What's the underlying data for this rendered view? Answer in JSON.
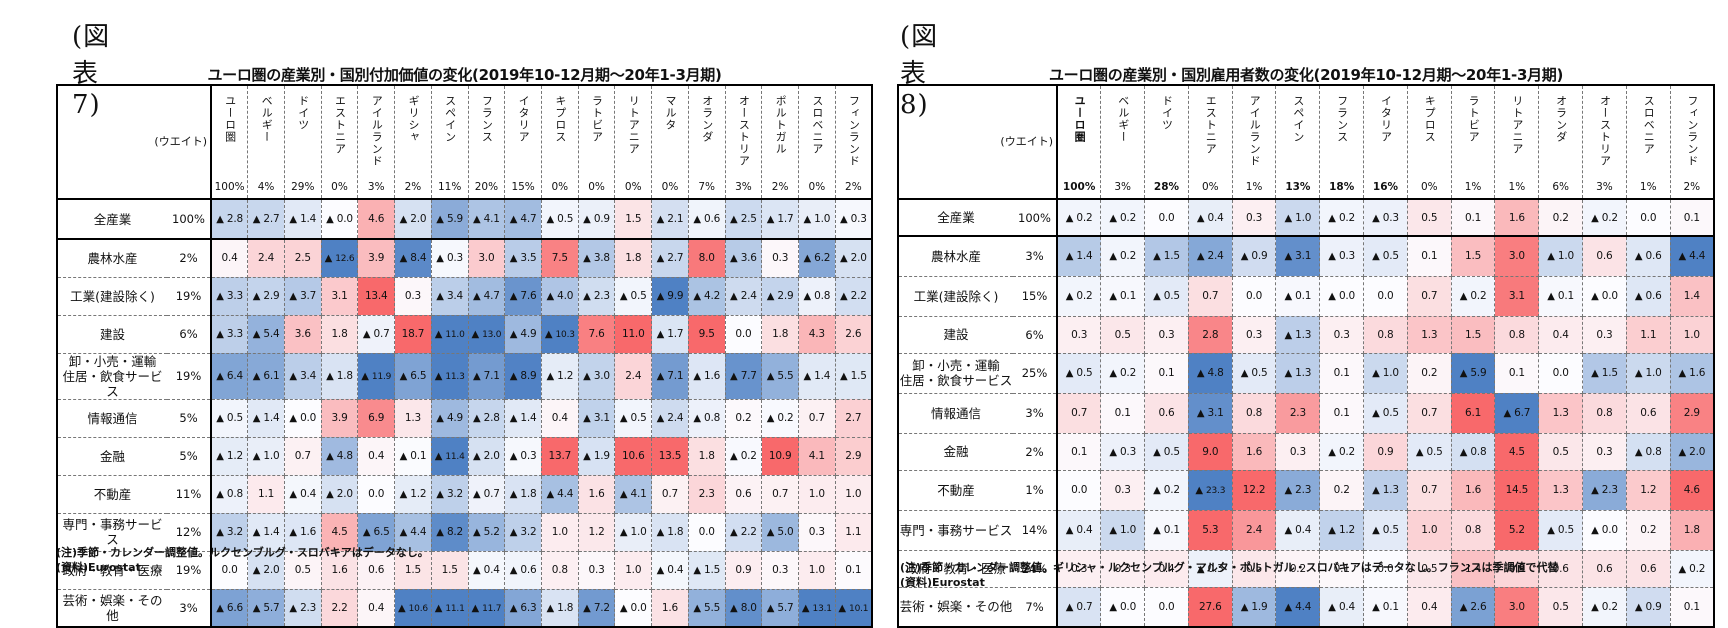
{
  "figures": [
    {
      "fig_label": "(図表 7)",
      "title": "ユーロ圏の産業別・国別付加価値の変化(2019年10-12月期～20年1-3月期)",
      "weight_label": "(ウエイト)",
      "columns": [
        "ユーロ圏",
        "ベルギー",
        "ドイツ",
        "エストニア",
        "アイルランド",
        "ギリシャ",
        "スペイン",
        "フランス",
        "イタリア",
        "キプロス",
        "ラトビア",
        "リトアニア",
        "マルタ",
        "オランダ",
        "オーストリア",
        "ポルトガル",
        "スロベニア",
        "フィンランド"
      ],
      "column_weights": [
        "100%",
        "4%",
        "29%",
        "0%",
        "3%",
        "2%",
        "11%",
        "20%",
        "15%",
        "0%",
        "0%",
        "0%",
        "0%",
        "7%",
        "3%",
        "2%",
        "0%",
        "2%"
      ],
      "rows": [
        {
          "label": "全産業",
          "weight": "100%",
          "values": [
            -2.8,
            -2.7,
            -1.4,
            -0.0,
            4.6,
            -2.0,
            -5.9,
            -4.1,
            -4.7,
            -0.5,
            -0.9,
            1.5,
            -2.1,
            -0.6,
            -2.5,
            -1.7,
            -1.0,
            -0.3
          ]
        },
        {
          "label": "農林水産",
          "weight": "2%",
          "values": [
            0.4,
            2.4,
            2.5,
            -12.6,
            3.9,
            -8.4,
            -0.3,
            3.0,
            -3.5,
            7.5,
            -3.8,
            1.8,
            -2.7,
            8.0,
            -3.6,
            0.3,
            -6.2,
            -2.0
          ]
        },
        {
          "label": "工業(建設除く)",
          "weight": "19%",
          "values": [
            -3.3,
            -2.9,
            -3.7,
            3.1,
            13.4,
            0.3,
            -3.4,
            -4.7,
            -7.6,
            -4.0,
            -2.3,
            -0.5,
            -9.9,
            -4.2,
            -2.4,
            -2.9,
            -0.8,
            -2.2
          ]
        },
        {
          "label": "建設",
          "weight": "6%",
          "values": [
            -3.3,
            -5.4,
            3.6,
            1.8,
            -0.7,
            18.7,
            -11.0,
            -13.0,
            -4.9,
            -10.3,
            7.6,
            11.0,
            -1.7,
            9.5,
            0.0,
            1.8,
            4.3,
            2.6
          ]
        },
        {
          "label": "卸・小売・運輸\n住居・飲食サービス",
          "weight": "19%",
          "values": [
            -6.4,
            -6.1,
            -3.4,
            -1.8,
            -11.9,
            -6.5,
            -11.3,
            -7.1,
            -8.9,
            -1.2,
            -3.0,
            2.4,
            -7.1,
            -1.6,
            -7.7,
            -5.5,
            -1.4,
            -1.5
          ]
        },
        {
          "label": "情報通信",
          "weight": "5%",
          "values": [
            -0.5,
            -1.4,
            -0.0,
            3.9,
            6.9,
            1.3,
            -4.9,
            -2.8,
            -1.4,
            0.4,
            -3.1,
            -0.5,
            -2.4,
            -0.8,
            0.2,
            -0.2,
            0.7,
            2.7
          ]
        },
        {
          "label": "金融",
          "weight": "5%",
          "values": [
            -1.2,
            -1.0,
            0.7,
            -4.8,
            0.4,
            -0.1,
            -11.4,
            -2.0,
            -0.3,
            13.7,
            -1.9,
            10.6,
            13.5,
            1.8,
            -0.2,
            10.9,
            4.1,
            2.9
          ]
        },
        {
          "label": "不動産",
          "weight": "11%",
          "values": [
            -0.8,
            1.1,
            -0.4,
            -2.0,
            0.0,
            -1.2,
            -3.2,
            -0.7,
            -1.8,
            -4.4,
            1.6,
            -4.1,
            0.7,
            2.3,
            0.6,
            0.7,
            1.0,
            1.0
          ]
        },
        {
          "label": "専門・事務サービス",
          "weight": "12%",
          "values": [
            -3.2,
            -1.4,
            -1.6,
            4.5,
            -6.5,
            -4.4,
            -8.2,
            -5.2,
            -3.2,
            1.0,
            1.2,
            -1.0,
            -1.8,
            0.0,
            -2.2,
            -5.0,
            0.3,
            1.1
          ]
        },
        {
          "label": "政府・教育・医療",
          "weight": "19%",
          "values": [
            0.0,
            -2.0,
            0.5,
            1.6,
            0.6,
            1.5,
            1.5,
            -0.4,
            -0.6,
            0.8,
            0.3,
            1.0,
            -0.4,
            -1.5,
            0.9,
            0.3,
            1.0,
            0.1
          ]
        },
        {
          "label": "芸術・娯楽・その他",
          "weight": "3%",
          "values": [
            -6.6,
            -5.7,
            -2.3,
            2.2,
            0.4,
            -10.6,
            -11.1,
            -11.7,
            -6.3,
            -1.8,
            -7.2,
            -0.0,
            1.6,
            -5.5,
            -8.0,
            -5.7,
            -13.1,
            -10.1
          ]
        }
      ],
      "note": "(注)季節・カレンダー調整値。ルクセンブルグ・スロバキアはデータなし。",
      "source": "(資料)Eurostat"
    },
    {
      "fig_label": "(図表 8)",
      "title": "ユーロ圏の産業別・国別雇用者数の変化(2019年10-12月期～20年1-3月期)",
      "weight_label": "(ウエイト)",
      "columns": [
        "ユーロ圏",
        "ベルギー",
        "ドイツ",
        "エストニア",
        "アイルランド",
        "スペイン",
        "フランス",
        "イタリア",
        "キプロス",
        "ラトビア",
        "リトアニア",
        "オランダ",
        "オーストリア",
        "スロベニア",
        "フィンランド"
      ],
      "column_weights": [
        "100%",
        "3%",
        "28%",
        "0%",
        "1%",
        "13%",
        "18%",
        "16%",
        "0%",
        "1%",
        "1%",
        "6%",
        "3%",
        "1%",
        "2%"
      ],
      "rows": [
        {
          "label": "全産業",
          "weight": "100%",
          "values": [
            -0.2,
            -0.2,
            0.0,
            -0.4,
            0.3,
            -1.0,
            -0.2,
            -0.3,
            0.5,
            0.1,
            1.6,
            0.2,
            -0.2,
            0.0,
            0.1
          ]
        },
        {
          "label": "農林水産",
          "weight": "3%",
          "values": [
            -1.4,
            -0.2,
            -1.5,
            -2.4,
            -0.9,
            -3.1,
            -0.3,
            -0.5,
            0.1,
            1.5,
            3.0,
            -1.0,
            0.6,
            -0.6,
            -4.4
          ]
        },
        {
          "label": "工業(建設除く)",
          "weight": "15%",
          "values": [
            -0.2,
            -0.1,
            -0.5,
            0.7,
            0.0,
            -0.1,
            -0.0,
            0.0,
            0.7,
            -0.2,
            3.1,
            -0.1,
            -0.0,
            -0.6,
            1.4
          ]
        },
        {
          "label": "建設",
          "weight": "6%",
          "values": [
            0.3,
            0.5,
            0.3,
            2.8,
            0.3,
            -1.3,
            0.3,
            0.8,
            1.3,
            1.5,
            0.8,
            0.4,
            0.3,
            1.1,
            1.0
          ]
        },
        {
          "label": "卸・小売・運輸\n住居・飲食サービス",
          "weight": "25%",
          "values": [
            -0.5,
            -0.2,
            0.1,
            -4.8,
            -0.5,
            -1.3,
            0.1,
            -1.0,
            0.2,
            -5.9,
            0.1,
            0.0,
            -1.5,
            -1.0,
            -1.6
          ]
        },
        {
          "label": "情報通信",
          "weight": "3%",
          "values": [
            0.7,
            0.1,
            0.6,
            -3.1,
            0.8,
            2.3,
            0.1,
            -0.5,
            0.7,
            6.1,
            -6.7,
            1.3,
            0.8,
            0.6,
            2.9
          ]
        },
        {
          "label": "金融",
          "weight": "2%",
          "values": [
            0.1,
            -0.3,
            -0.5,
            9.0,
            1.6,
            0.3,
            -0.2,
            0.9,
            -0.5,
            -0.8,
            4.5,
            0.5,
            0.3,
            -0.8,
            -2.0
          ]
        },
        {
          "label": "不動産",
          "weight": "1%",
          "values": [
            0.0,
            0.3,
            -0.2,
            -23.3,
            12.2,
            -2.3,
            0.2,
            -1.3,
            0.7,
            1.6,
            14.5,
            1.3,
            -2.3,
            1.2,
            4.6
          ]
        },
        {
          "label": "専門・事務サービス",
          "weight": "14%",
          "values": [
            -0.4,
            -1.0,
            -0.1,
            5.3,
            2.4,
            -0.4,
            -1.2,
            -0.5,
            1.0,
            0.8,
            5.2,
            -0.5,
            -0.0,
            0.2,
            1.8
          ]
        },
        {
          "label": "政府・教育・医療",
          "weight": "24%",
          "values": [
            0.3,
            0.3,
            0.4,
            -0.3,
            0.5,
            0.2,
            0.1,
            0.0,
            0.5,
            1.4,
            0.9,
            0.6,
            0.6,
            0.6,
            -0.2
          ]
        },
        {
          "label": "芸術・娯楽・その他",
          "weight": "7%",
          "values": [
            -0.7,
            -0.0,
            0.0,
            27.6,
            -1.9,
            -4.4,
            -0.4,
            -0.1,
            0.4,
            -2.6,
            3.0,
            0.5,
            -0.2,
            -0.9,
            0.1
          ]
        }
      ],
      "note": "(注)季節・カレンダー調整値。ギリシャ・ルクセンブルグ・マルタ・ポルトガル・スロバキアはデータなし。フランスは季調値で代替",
      "source": "(資料)Eurostat"
    }
  ],
  "legend": {
    "negative_marker": "▲",
    "negative_color": "#4f81c4",
    "positive_color": "#f8696b",
    "neutral_color": "#fcfcff"
  },
  "chart_data": [
    {
      "type": "heatmap",
      "title": "ユーロ圏の産業別・国別付加価値の変化(2019年10-12月期～20年1-3月期)",
      "x": [
        "ユーロ圏",
        "ベルギー",
        "ドイツ",
        "エストニア",
        "アイルランド",
        "ギリシャ",
        "スペイン",
        "フランス",
        "イタリア",
        "キプロス",
        "ラトビア",
        "リトアニア",
        "マルタ",
        "オランダ",
        "オーストリア",
        "ポルトガル",
        "スロベニア",
        "フィンランド"
      ],
      "y": [
        "全産業",
        "農林水産",
        "工業(建設除く)",
        "建設",
        "卸・小売・運輸 住居・飲食サービス",
        "情報通信",
        "金融",
        "不動産",
        "専門・事務サービス",
        "政府・教育・医療",
        "芸術・娯楽・その他"
      ],
      "unit": "% (▲ = negative)"
    },
    {
      "type": "heatmap",
      "title": "ユーロ圏の産業別・国別雇用者数の変化(2019年10-12月期～20年1-3月期)",
      "x": [
        "ユーロ圏",
        "ベルギー",
        "ドイツ",
        "エストニア",
        "アイルランド",
        "スペイン",
        "フランス",
        "イタリア",
        "キプロス",
        "ラトビア",
        "リトアニア",
        "オランダ",
        "オーストリア",
        "スロベニア",
        "フィンランド"
      ],
      "y": [
        "全産業",
        "農林水産",
        "工業(建設除く)",
        "建設",
        "卸・小売・運輸 住居・飲食サービス",
        "情報通信",
        "金融",
        "不動産",
        "専門・事務サービス",
        "政府・教育・医療",
        "芸術・娯楽・その他"
      ],
      "unit": "% (▲ = negative)"
    }
  ]
}
